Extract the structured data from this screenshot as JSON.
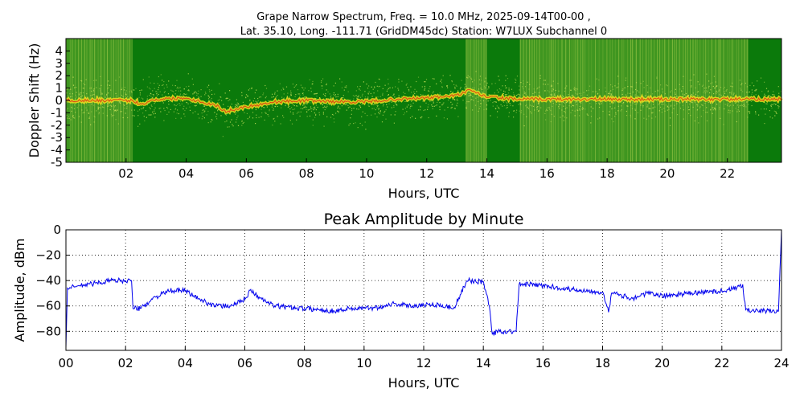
{
  "spectrum": {
    "title_line1": "Grape Narrow Spectrum, Freq. = 10.0 MHz, 2025-09-14T00-00 ,",
    "title_line2": "Lat.  35.10, Long. -111.71 (GridDM45dc) Station: W7LUX Subchannel 0",
    "xlabel": "Hours, UTC",
    "ylabel": "Doppler Shift (Hz)"
  },
  "amplitude": {
    "title": "Peak Amplitude by Minute",
    "xlabel": "Hours, UTC",
    "ylabel": "Amplitude, dBm"
  },
  "colors": {
    "spectrogram_background": "#0b7a0b",
    "spectrogram_speckle": "#c8e05a",
    "doppler_trace": "#f0e020",
    "doppler_peak": "#e02010",
    "amplitude_line": "#0000ee",
    "grid": "#000000"
  },
  "chart_data": [
    {
      "type": "heatmap",
      "title": "Grape Narrow Spectrum, Freq. = 10.0 MHz, 2025-09-14T00-00 , Lat.  35.10, Long. -111.71 (GridDM45dc) Station: W7LUX Subchannel 0",
      "xlabel": "Hours, UTC",
      "ylabel": "Doppler Shift (Hz)",
      "xlim": [
        0,
        23.8
      ],
      "ylim": [
        -5,
        5
      ],
      "x_ticks": [
        2,
        4,
        6,
        8,
        10,
        12,
        14,
        16,
        18,
        20,
        22
      ],
      "x_tick_labels": [
        "02",
        "04",
        "06",
        "08",
        "10",
        "12",
        "14",
        "16",
        "18",
        "20",
        "22"
      ],
      "y_ticks": [
        4,
        3,
        2,
        1,
        0,
        -1,
        -2,
        -3,
        -4,
        -5
      ],
      "y_tick_labels": [
        "4",
        "3",
        "2",
        "1",
        "0",
        "-1",
        "-2",
        "-3",
        "-4",
        "-5"
      ],
      "noise_bands_hours": [
        [
          0,
          2.2
        ],
        [
          13.3,
          14.0
        ],
        [
          15.1,
          22.7
        ]
      ],
      "doppler_trace": {
        "x": [
          0,
          1,
          2.2,
          2.5,
          3,
          4,
          5,
          5.3,
          6,
          7,
          8,
          9,
          10,
          11,
          12,
          13,
          13.4,
          14,
          15,
          16,
          18,
          20,
          22,
          23.8
        ],
        "y": [
          0,
          0,
          0,
          -0.3,
          0.1,
          0.2,
          -0.4,
          -0.9,
          -0.5,
          -0.1,
          0,
          -0.1,
          -0.1,
          0.1,
          0.2,
          0.4,
          0.8,
          0.3,
          0.1,
          0.1,
          0.1,
          0.1,
          0.1,
          0.1
        ]
      }
    },
    {
      "type": "line",
      "title": "Peak Amplitude by Minute",
      "xlabel": "Hours, UTC",
      "ylabel": "Amplitude, dBm",
      "xlim": [
        0,
        24
      ],
      "ylim": [
        -95,
        0
      ],
      "grid": true,
      "x_ticks": [
        0,
        2,
        4,
        6,
        8,
        10,
        12,
        14,
        16,
        18,
        20,
        22,
        24
      ],
      "x_tick_labels": [
        "00",
        "02",
        "04",
        "06",
        "08",
        "10",
        "12",
        "14",
        "16",
        "18",
        "20",
        "22",
        "24"
      ],
      "y_ticks": [
        0,
        -20,
        -40,
        -60,
        -80
      ],
      "y_tick_labels": [
        "0",
        "−20",
        "−40",
        "−60",
        "−80"
      ],
      "series": [
        {
          "x": [
            0,
            0.05,
            0.5,
            1,
            1.5,
            2,
            2.2,
            2.25,
            2.5,
            3,
            3.5,
            4,
            4.5,
            5,
            5.5,
            6,
            6.2,
            6.5,
            7,
            7.5,
            8,
            8.5,
            9,
            9.5,
            10,
            10.5,
            11,
            11.5,
            12,
            12.5,
            13,
            13.4,
            13.5,
            14,
            14.2,
            14.3,
            14.5,
            15,
            15.1,
            15.2,
            15.5,
            16,
            17,
            18,
            18.2,
            18.3,
            18.5,
            19,
            19.5,
            20,
            21,
            22,
            22.5,
            22.7,
            22.8,
            23,
            23.5,
            23.9,
            24
          ],
          "y": [
            -93,
            -46,
            -44,
            -42,
            -40,
            -40,
            -40,
            -62,
            -62,
            -53,
            -48,
            -48,
            -55,
            -60,
            -60,
            -55,
            -47,
            -54,
            -60,
            -61,
            -62,
            -63,
            -64,
            -62,
            -62,
            -61,
            -58,
            -60,
            -59,
            -59,
            -62,
            -43,
            -40,
            -41,
            -60,
            -82,
            -80,
            -80,
            -80,
            -43,
            -43,
            -44,
            -47,
            -49,
            -65,
            -50,
            -51,
            -54,
            -50,
            -52,
            -50,
            -48,
            -46,
            -43,
            -63,
            -64,
            -64,
            -64,
            0
          ]
        }
      ]
    }
  ]
}
